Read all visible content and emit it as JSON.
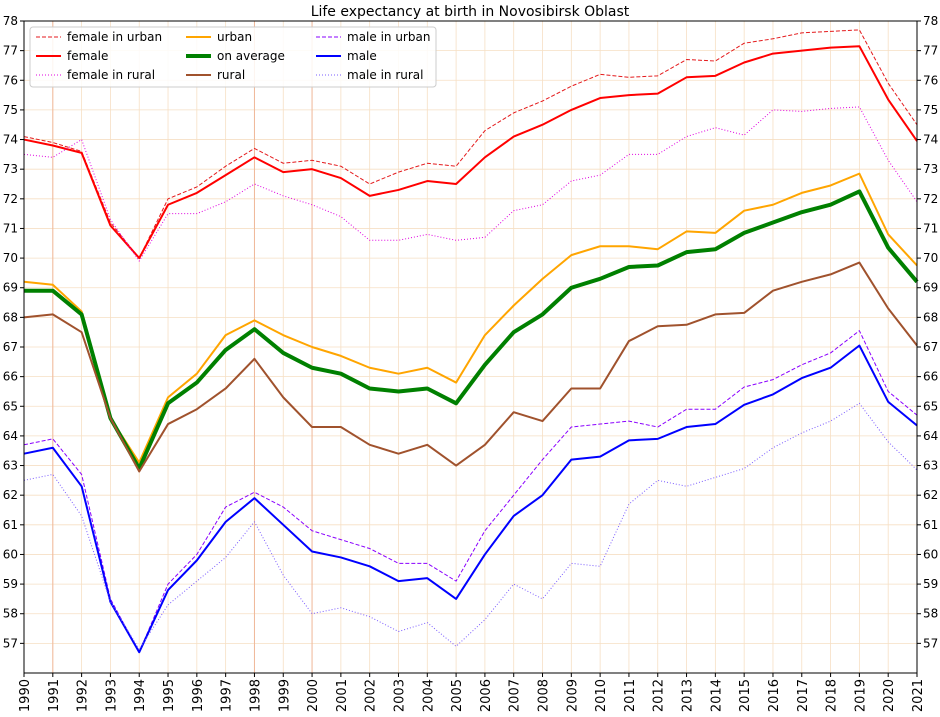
{
  "chart_data": {
    "type": "line",
    "title": "Life expectancy at birth in Novosibirsk Oblast",
    "xlabel": "",
    "ylabel": "",
    "x": [
      1990,
      1991,
      1992,
      1993,
      1994,
      1995,
      1996,
      1997,
      1998,
      1999,
      2000,
      2001,
      2002,
      2003,
      2004,
      2005,
      2006,
      2007,
      2008,
      2009,
      2010,
      2011,
      2012,
      2013,
      2014,
      2015,
      2016,
      2017,
      2018,
      2019,
      2020,
      2021
    ],
    "xlim": [
      1990,
      2021
    ],
    "ylim": [
      56,
      78
    ],
    "y_ticks": [
      57,
      58,
      59,
      60,
      61,
      62,
      63,
      64,
      65,
      66,
      67,
      68,
      69,
      70,
      71,
      72,
      73,
      74,
      75,
      76,
      77,
      78
    ],
    "grid": true,
    "highlight_years": [
      1991,
      1998,
      2000
    ],
    "legend_position": "top-left",
    "series": [
      {
        "name": "female in urban",
        "color": "#e41a1c",
        "style": "dashed",
        "width": 1,
        "values": [
          74.1,
          73.9,
          73.6,
          71.2,
          70.0,
          72.0,
          72.4,
          73.1,
          73.7,
          73.2,
          73.3,
          73.1,
          72.5,
          72.9,
          73.2,
          73.1,
          74.3,
          74.9,
          75.3,
          75.8,
          76.2,
          76.1,
          76.15,
          76.7,
          76.65,
          77.25,
          77.4,
          77.6,
          77.65,
          77.7,
          75.9,
          74.5
        ]
      },
      {
        "name": "female",
        "color": "#ff0000",
        "style": "solid",
        "width": 2,
        "values": [
          74.0,
          73.8,
          73.55,
          71.1,
          70.0,
          71.8,
          72.2,
          72.8,
          73.4,
          72.9,
          73.0,
          72.7,
          72.1,
          72.3,
          72.6,
          72.5,
          73.4,
          74.1,
          74.5,
          75.0,
          75.4,
          75.5,
          75.55,
          76.1,
          76.15,
          76.6,
          76.9,
          77.0,
          77.1,
          77.15,
          75.35,
          73.95
        ]
      },
      {
        "name": "female in rural",
        "color": "#e000e0",
        "style": "dotted",
        "width": 1,
        "values": [
          73.5,
          73.4,
          74.0,
          71.3,
          69.9,
          71.5,
          71.5,
          71.9,
          72.5,
          72.1,
          71.8,
          71.4,
          70.6,
          70.6,
          70.8,
          70.6,
          70.7,
          71.6,
          71.8,
          72.6,
          72.8,
          73.5,
          73.5,
          74.1,
          74.4,
          74.15,
          75.0,
          74.95,
          75.05,
          75.1,
          73.3,
          71.9
        ]
      },
      {
        "name": "urban",
        "color": "#ffa500",
        "style": "solid",
        "width": 2,
        "values": [
          69.2,
          69.1,
          68.2,
          64.6,
          63.1,
          65.3,
          66.1,
          67.4,
          67.9,
          67.4,
          67.0,
          66.7,
          66.3,
          66.1,
          66.3,
          65.8,
          67.4,
          68.4,
          69.3,
          70.1,
          70.4,
          70.4,
          70.3,
          70.9,
          70.85,
          71.6,
          71.8,
          72.2,
          72.45,
          72.85,
          70.8,
          69.75
        ]
      },
      {
        "name": "on average",
        "color": "#008000",
        "style": "solid",
        "width": 4,
        "values": [
          68.9,
          68.9,
          68.1,
          64.6,
          62.9,
          65.1,
          65.8,
          66.9,
          67.6,
          66.8,
          66.3,
          66.1,
          65.6,
          65.5,
          65.6,
          65.1,
          66.4,
          67.5,
          68.1,
          69.0,
          69.3,
          69.7,
          69.75,
          70.2,
          70.3,
          70.85,
          71.2,
          71.55,
          71.8,
          72.25,
          70.35,
          69.2
        ]
      },
      {
        "name": "rural",
        "color": "#a0522d",
        "style": "solid",
        "width": 2,
        "values": [
          68.0,
          68.1,
          67.5,
          64.6,
          62.8,
          64.4,
          64.9,
          65.6,
          66.6,
          65.3,
          64.3,
          64.3,
          63.7,
          63.4,
          63.7,
          63.0,
          63.7,
          64.8,
          64.5,
          65.6,
          65.6,
          67.2,
          67.7,
          67.75,
          68.1,
          68.15,
          68.9,
          69.2,
          69.45,
          69.85,
          68.3,
          67.05
        ]
      },
      {
        "name": "male in urban",
        "color": "#8a00ff",
        "style": "dashed",
        "width": 1,
        "values": [
          63.7,
          63.9,
          62.7,
          58.5,
          56.7,
          59.0,
          60.0,
          61.6,
          62.1,
          61.6,
          60.8,
          60.5,
          60.2,
          59.7,
          59.7,
          59.1,
          60.8,
          62.0,
          63.2,
          64.3,
          64.4,
          64.5,
          64.3,
          64.9,
          64.9,
          65.65,
          65.9,
          66.4,
          66.8,
          67.55,
          65.5,
          64.7
        ]
      },
      {
        "name": "male",
        "color": "#0000ff",
        "style": "solid",
        "width": 2,
        "values": [
          63.4,
          63.6,
          62.3,
          58.4,
          56.7,
          58.8,
          59.8,
          61.1,
          61.9,
          61.0,
          60.1,
          59.9,
          59.6,
          59.1,
          59.2,
          58.5,
          60.0,
          61.3,
          62.0,
          63.2,
          63.3,
          63.85,
          63.9,
          64.3,
          64.4,
          65.05,
          65.4,
          65.95,
          66.3,
          67.05,
          65.15,
          64.35
        ]
      },
      {
        "name": "male in rural",
        "color": "#7b5cff",
        "style": "dotted",
        "width": 1,
        "values": [
          62.5,
          62.7,
          61.3,
          58.4,
          56.8,
          58.3,
          59.1,
          59.9,
          61.1,
          59.3,
          58.0,
          58.2,
          57.9,
          57.4,
          57.7,
          56.9,
          57.8,
          59.0,
          58.5,
          59.7,
          59.6,
          61.7,
          62.5,
          62.3,
          62.6,
          62.9,
          63.6,
          64.1,
          64.5,
          65.1,
          63.8,
          62.85
        ]
      }
    ]
  }
}
